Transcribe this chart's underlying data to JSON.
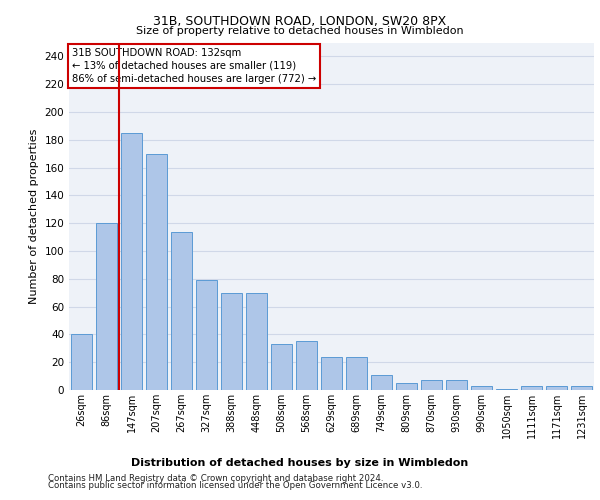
{
  "title1": "31B, SOUTHDOWN ROAD, LONDON, SW20 8PX",
  "title2": "Size of property relative to detached houses in Wimbledon",
  "xlabel": "Distribution of detached houses by size in Wimbledon",
  "ylabel": "Number of detached properties",
  "bar_labels": [
    "26sqm",
    "86sqm",
    "147sqm",
    "207sqm",
    "267sqm",
    "327sqm",
    "388sqm",
    "448sqm",
    "508sqm",
    "568sqm",
    "629sqm",
    "689sqm",
    "749sqm",
    "809sqm",
    "870sqm",
    "930sqm",
    "990sqm",
    "1050sqm",
    "1111sqm",
    "1171sqm",
    "1231sqm"
  ],
  "bar_values": [
    40,
    120,
    185,
    170,
    114,
    79,
    70,
    70,
    33,
    35,
    24,
    24,
    11,
    5,
    7,
    7,
    3,
    1,
    3,
    3,
    3
  ],
  "bar_color": "#aec6e8",
  "bar_edge_color": "#5b9bd5",
  "red_line_index": 2,
  "annotation_text": "31B SOUTHDOWN ROAD: 132sqm\n← 13% of detached houses are smaller (119)\n86% of semi-detached houses are larger (772) →",
  "annotation_box_color": "#ffffff",
  "annotation_box_edge": "#cc0000",
  "red_line_color": "#cc0000",
  "grid_color": "#d0d8e8",
  "background_color": "#eef2f8",
  "fig_background": "#ffffff",
  "ylim": [
    0,
    250
  ],
  "yticks": [
    0,
    20,
    40,
    60,
    80,
    100,
    120,
    140,
    160,
    180,
    200,
    220,
    240
  ],
  "footer1": "Contains HM Land Registry data © Crown copyright and database right 2024.",
  "footer2": "Contains public sector information licensed under the Open Government Licence v3.0."
}
